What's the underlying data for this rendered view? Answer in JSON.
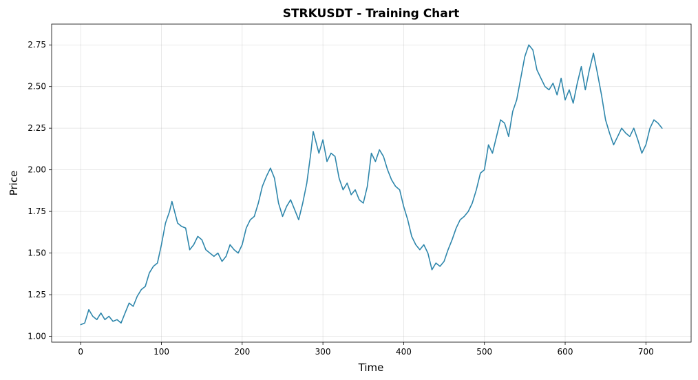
{
  "chart_data": {
    "type": "line",
    "title": "STRKUSDT - Training Chart",
    "xlabel": "Time",
    "ylabel": "Price",
    "xlim": [
      -36,
      756
    ],
    "ylim": [
      0.965,
      2.875
    ],
    "x_ticks": [
      0,
      100,
      200,
      300,
      400,
      500,
      600,
      700
    ],
    "y_ticks": [
      1.0,
      1.25,
      1.5,
      1.75,
      2.0,
      2.25,
      2.5,
      2.75
    ],
    "y_tick_labels": [
      "1.00",
      "1.25",
      "1.50",
      "1.75",
      "2.00",
      "2.25",
      "2.50",
      "2.75"
    ],
    "grid": true,
    "line_color": "#2e86ab",
    "series": [
      {
        "name": "",
        "x": [
          0,
          5,
          10,
          15,
          20,
          25,
          30,
          35,
          40,
          45,
          50,
          55,
          60,
          65,
          70,
          75,
          80,
          85,
          90,
          95,
          100,
          105,
          110,
          113,
          120,
          125,
          130,
          135,
          140,
          145,
          150,
          155,
          160,
          165,
          170,
          175,
          180,
          185,
          190,
          195,
          200,
          205,
          210,
          215,
          220,
          225,
          230,
          235,
          240,
          245,
          250,
          255,
          260,
          265,
          270,
          275,
          280,
          285,
          288,
          295,
          300,
          305,
          310,
          315,
          320,
          325,
          330,
          335,
          340,
          345,
          350,
          355,
          360,
          365,
          370,
          375,
          380,
          385,
          390,
          395,
          400,
          405,
          410,
          415,
          420,
          425,
          430,
          435,
          440,
          445,
          450,
          455,
          460,
          465,
          470,
          475,
          480,
          485,
          490,
          495,
          500,
          505,
          510,
          515,
          520,
          525,
          530,
          535,
          540,
          545,
          550,
          555,
          560,
          565,
          570,
          575,
          580,
          585,
          590,
          595,
          600,
          605,
          610,
          615,
          620,
          625,
          630,
          635,
          640,
          645,
          650,
          655,
          660,
          665,
          670,
          675,
          680,
          685,
          690,
          695,
          700,
          705,
          710,
          715,
          720
        ],
        "y": [
          1.07,
          1.08,
          1.16,
          1.12,
          1.1,
          1.14,
          1.1,
          1.12,
          1.09,
          1.1,
          1.08,
          1.14,
          1.2,
          1.18,
          1.24,
          1.28,
          1.3,
          1.38,
          1.42,
          1.44,
          1.55,
          1.68,
          1.75,
          1.81,
          1.68,
          1.66,
          1.65,
          1.52,
          1.55,
          1.6,
          1.58,
          1.52,
          1.5,
          1.48,
          1.5,
          1.45,
          1.48,
          1.55,
          1.52,
          1.5,
          1.55,
          1.65,
          1.7,
          1.72,
          1.8,
          1.9,
          1.96,
          2.01,
          1.95,
          1.8,
          1.72,
          1.78,
          1.82,
          1.76,
          1.7,
          1.8,
          1.92,
          2.1,
          2.23,
          2.1,
          2.18,
          2.05,
          2.1,
          2.08,
          1.95,
          1.88,
          1.92,
          1.85,
          1.88,
          1.82,
          1.8,
          1.9,
          2.1,
          2.05,
          2.12,
          2.08,
          2.0,
          1.94,
          1.9,
          1.88,
          1.78,
          1.7,
          1.6,
          1.55,
          1.52,
          1.55,
          1.5,
          1.4,
          1.44,
          1.42,
          1.45,
          1.52,
          1.58,
          1.65,
          1.7,
          1.72,
          1.75,
          1.8,
          1.88,
          1.98,
          2.0,
          2.15,
          2.1,
          2.2,
          2.3,
          2.28,
          2.2,
          2.35,
          2.42,
          2.55,
          2.68,
          2.75,
          2.72,
          2.6,
          2.55,
          2.5,
          2.48,
          2.52,
          2.45,
          2.55,
          2.42,
          2.48,
          2.4,
          2.52,
          2.62,
          2.48,
          2.6,
          2.7,
          2.58,
          2.45,
          2.3,
          2.22,
          2.15,
          2.2,
          2.25,
          2.22,
          2.2,
          2.25,
          2.18,
          2.1,
          2.15,
          2.25,
          2.3,
          2.28,
          2.25
        ]
      }
    ]
  }
}
